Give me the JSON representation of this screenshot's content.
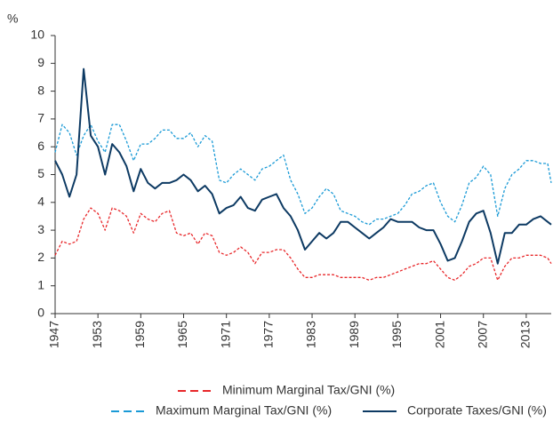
{
  "chart_data": {
    "type": "line",
    "y_label": "%",
    "x": [
      1947,
      1948,
      1949,
      1950,
      1951,
      1952,
      1953,
      1954,
      1955,
      1956,
      1957,
      1958,
      1959,
      1960,
      1961,
      1962,
      1963,
      1964,
      1965,
      1966,
      1967,
      1968,
      1969,
      1970,
      1971,
      1972,
      1973,
      1974,
      1975,
      1976,
      1977,
      1978,
      1979,
      1980,
      1981,
      1982,
      1983,
      1984,
      1985,
      1986,
      1987,
      1988,
      1989,
      1990,
      1991,
      1992,
      1993,
      1994,
      1995,
      1996,
      1997,
      1998,
      1999,
      2000,
      2001,
      2002,
      2003,
      2004,
      2005,
      2006,
      2007,
      2008,
      2009,
      2010,
      2011,
      2012,
      2013,
      2014,
      2015,
      2016,
      2016.5
    ],
    "series": [
      {
        "name": "Minimum Marginal Tax/GNI (%)",
        "color": "#e8272a",
        "style": "dashed",
        "values": [
          2.1,
          2.6,
          2.5,
          2.6,
          3.4,
          3.8,
          3.6,
          3.0,
          3.8,
          3.7,
          3.5,
          2.9,
          3.6,
          3.4,
          3.3,
          3.6,
          3.7,
          2.9,
          2.8,
          2.9,
          2.5,
          2.9,
          2.8,
          2.2,
          2.1,
          2.2,
          2.4,
          2.2,
          1.8,
          2.2,
          2.2,
          2.3,
          2.3,
          2.0,
          1.6,
          1.3,
          1.3,
          1.4,
          1.4,
          1.4,
          1.3,
          1.3,
          1.3,
          1.3,
          1.2,
          1.3,
          1.3,
          1.4,
          1.5,
          1.6,
          1.7,
          1.8,
          1.8,
          1.9,
          1.6,
          1.3,
          1.2,
          1.4,
          1.7,
          1.8,
          2.0,
          2.0,
          1.2,
          1.7,
          2.0,
          2.0,
          2.1,
          2.1,
          2.1,
          2.0,
          1.8
        ]
      },
      {
        "name": "Maximum Marginal Tax/GNI (%)",
        "color": "#1a9ad6",
        "style": "dashed",
        "values": [
          5.8,
          6.8,
          6.5,
          5.7,
          6.4,
          6.8,
          6.2,
          5.8,
          6.8,
          6.8,
          6.2,
          5.5,
          6.1,
          6.1,
          6.3,
          6.6,
          6.6,
          6.3,
          6.3,
          6.5,
          6.0,
          6.4,
          6.2,
          4.8,
          4.7,
          5.0,
          5.2,
          5.0,
          4.8,
          5.2,
          5.3,
          5.5,
          5.7,
          4.8,
          4.3,
          3.6,
          3.8,
          4.2,
          4.5,
          4.3,
          3.7,
          3.6,
          3.5,
          3.3,
          3.2,
          3.4,
          3.4,
          3.5,
          3.6,
          3.9,
          4.3,
          4.4,
          4.6,
          4.7,
          4.0,
          3.5,
          3.3,
          3.9,
          4.7,
          4.9,
          5.3,
          5.0,
          3.5,
          4.5,
          5.0,
          5.2,
          5.5,
          5.5,
          5.4,
          5.4,
          4.7
        ]
      },
      {
        "name": "Corporate Taxes/GNI (%)",
        "color": "#0d3a63",
        "style": "solid",
        "values": [
          5.5,
          5.0,
          4.2,
          5.0,
          8.8,
          6.4,
          6.0,
          5.0,
          6.1,
          5.8,
          5.3,
          4.4,
          5.2,
          4.7,
          4.5,
          4.7,
          4.7,
          4.8,
          5.0,
          4.8,
          4.4,
          4.6,
          4.3,
          3.6,
          3.8,
          3.9,
          4.2,
          3.8,
          3.7,
          4.1,
          4.2,
          4.3,
          3.8,
          3.5,
          3.0,
          2.3,
          2.6,
          2.9,
          2.7,
          2.9,
          3.3,
          3.3,
          3.1,
          2.9,
          2.7,
          2.9,
          3.1,
          3.4,
          3.3,
          3.3,
          3.3,
          3.1,
          3.0,
          3.0,
          2.5,
          1.9,
          2.0,
          2.6,
          3.3,
          3.6,
          3.7,
          2.9,
          1.8,
          2.9,
          2.9,
          3.2,
          3.2,
          3.4,
          3.5,
          3.3,
          3.2
        ]
      }
    ],
    "xlim": [
      1947,
      2016.5
    ],
    "xticks": [
      1947,
      1953,
      1959,
      1965,
      1971,
      1977,
      1983,
      1989,
      1995,
      2001,
      2007,
      2013
    ],
    "ylim": [
      0,
      10
    ],
    "yticks": [
      0,
      1,
      2,
      3,
      4,
      5,
      6,
      7,
      8,
      9,
      10
    ],
    "legend": "bottom"
  }
}
